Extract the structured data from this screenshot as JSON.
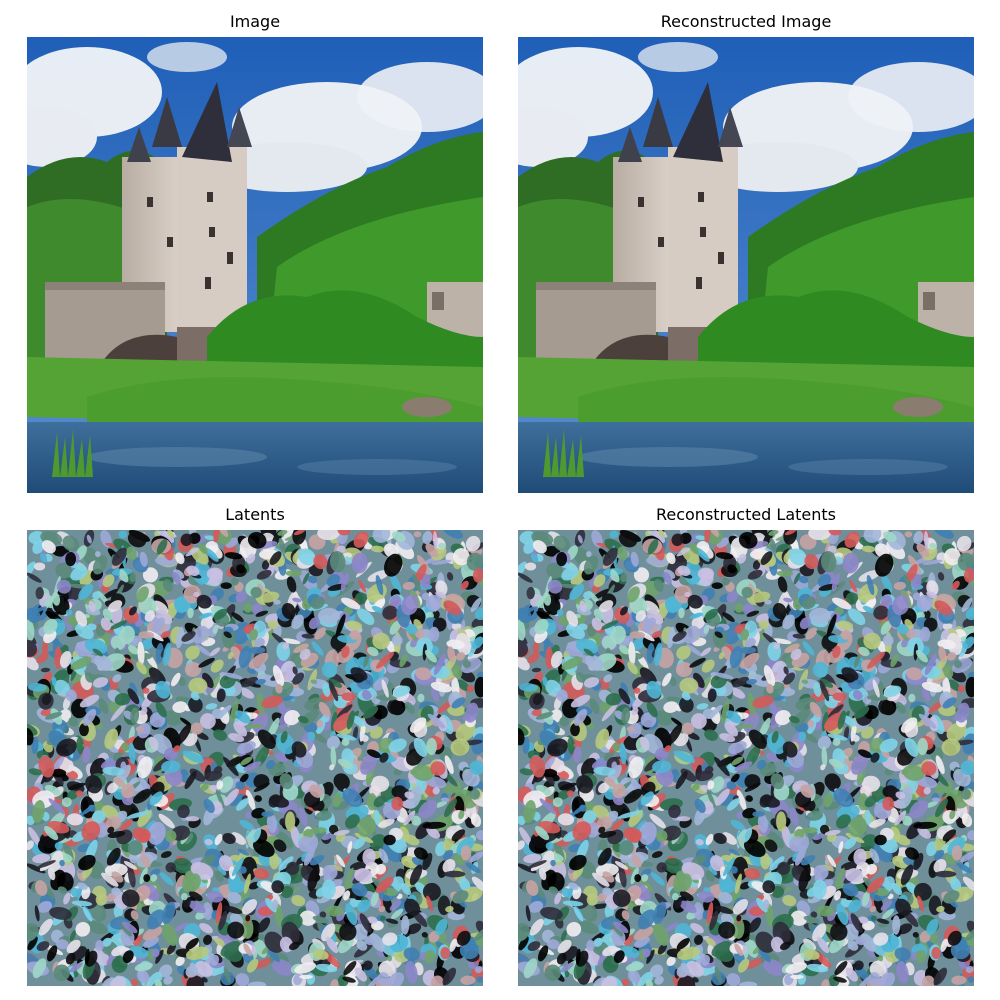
{
  "panels": {
    "top_left": {
      "title": "Image",
      "content_icon": "castle-landscape-photo"
    },
    "top_right": {
      "title": "Reconstructed Image",
      "content_icon": "castle-landscape-photo"
    },
    "bottom_left": {
      "title": "Latents",
      "content_icon": "noise-texture"
    },
    "bottom_right": {
      "title": "Reconstructed Latents",
      "content_icon": "noise-texture"
    }
  },
  "colors": {
    "sky": "#2f6fc4",
    "cloud": "#f2f4f7",
    "forest": "#3d8a2a",
    "castle_stone": "#c9bfb5",
    "roof": "#3a3a45",
    "water": "#2e5b86",
    "grass": "#56a335"
  }
}
